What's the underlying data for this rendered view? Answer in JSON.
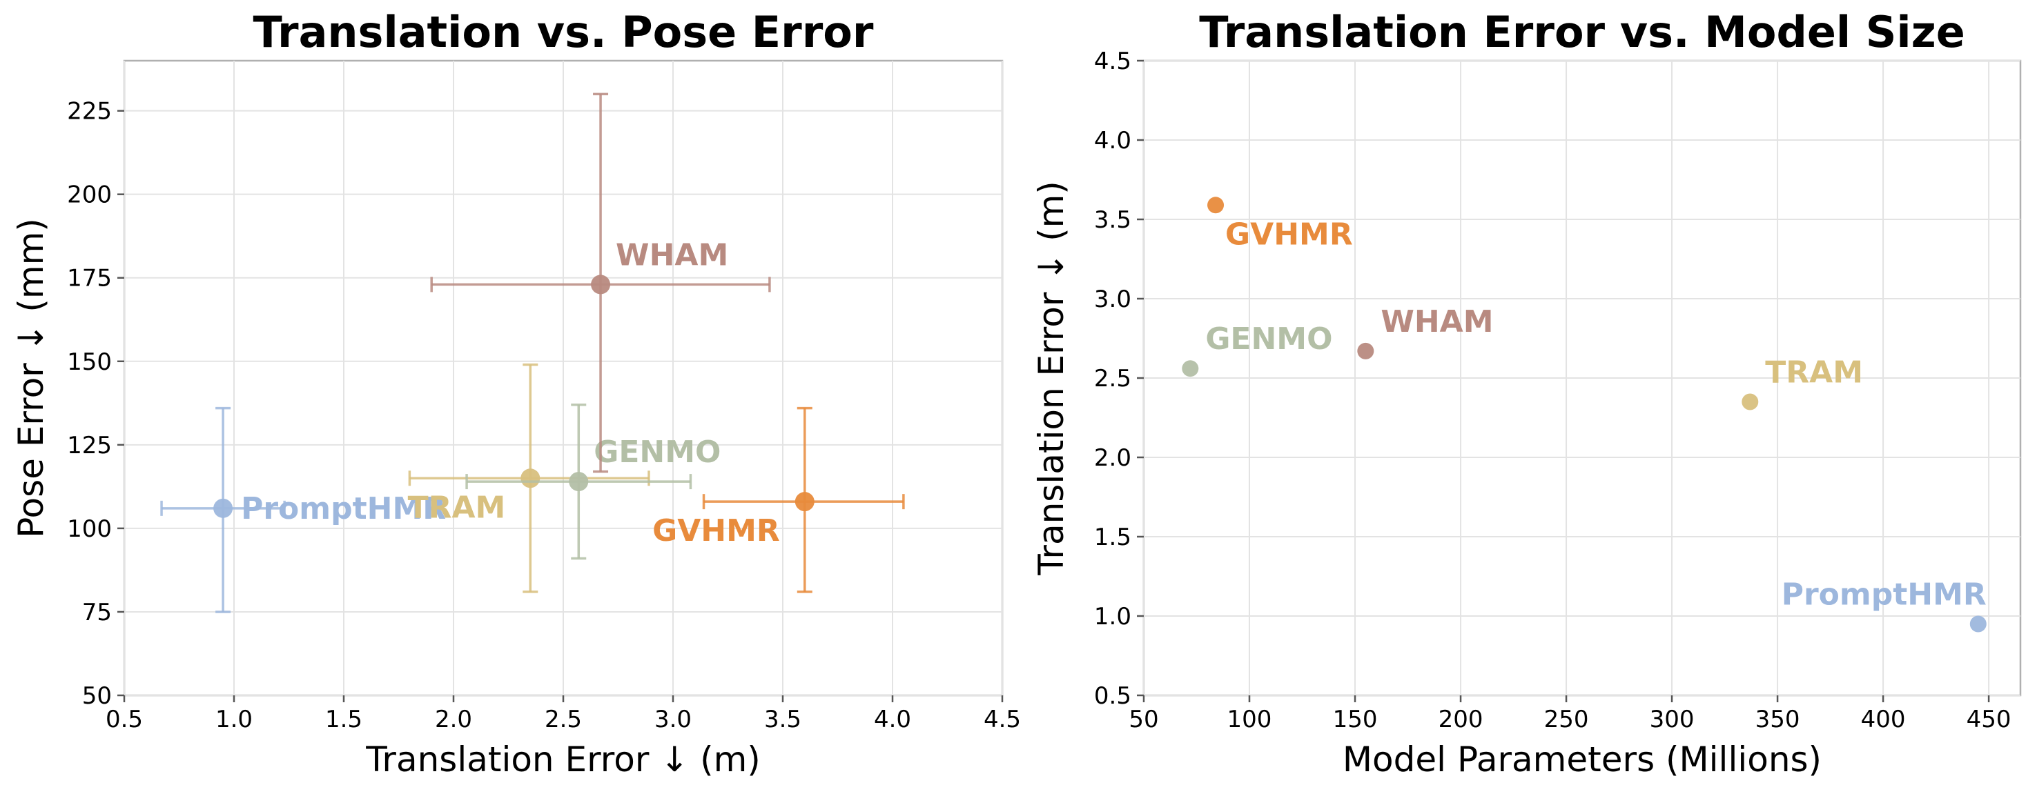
{
  "colors": {
    "PromptHMR": "#9db7dd",
    "TRAM": "#d8c07e",
    "GENMO": "#b3bfa6",
    "WHAM": "#b88a80",
    "GVHMR": "#e88b3c"
  },
  "chart_data": [
    {
      "type": "scatter",
      "title": "Translation vs. Pose Error",
      "xlabel": "Translation Error ↓ (m)",
      "ylabel": "Pose Error ↓ (mm)",
      "xlim": [
        0.5,
        4.5
      ],
      "ylim": [
        50,
        240
      ],
      "xticks": [
        0.5,
        1.0,
        1.5,
        2.0,
        2.5,
        3.0,
        3.5,
        4.0,
        4.5
      ],
      "xtick_labels": [
        "0.5",
        "1.0",
        "1.5",
        "2.0",
        "2.5",
        "3.0",
        "3.5",
        "4.0",
        "4.5"
      ],
      "yticks": [
        50,
        75,
        100,
        125,
        150,
        175,
        200,
        225
      ],
      "ytick_labels": [
        "50",
        "75",
        "100",
        "125",
        "150",
        "175",
        "200",
        "225"
      ],
      "grid": true,
      "error_bars": true,
      "points": [
        {
          "label": "PromptHMR",
          "x": 0.95,
          "y": 106,
          "xerr": [
            0.67,
            1.23
          ],
          "yerr": [
            75,
            136
          ],
          "label_pos": "right"
        },
        {
          "label": "TRAM",
          "x": 2.35,
          "y": 115,
          "xerr": [
            1.8,
            2.89
          ],
          "yerr": [
            81,
            149
          ],
          "label_pos": "lower-left"
        },
        {
          "label": "GENMO",
          "x": 2.57,
          "y": 114,
          "xerr": [
            2.06,
            3.08
          ],
          "yerr": [
            91,
            137
          ],
          "label_pos": "upper-right"
        },
        {
          "label": "WHAM",
          "x": 2.67,
          "y": 173,
          "xerr": [
            1.9,
            3.44
          ],
          "yerr": [
            117,
            230
          ],
          "label_pos": "upper-right"
        },
        {
          "label": "GVHMR",
          "x": 3.6,
          "y": 108,
          "xerr": [
            3.14,
            4.05
          ],
          "yerr": [
            81,
            136
          ],
          "label_pos": "lower-left"
        }
      ]
    },
    {
      "type": "scatter",
      "title": "Translation Error vs. Model Size",
      "xlabel": "Model Parameters (Millions)",
      "ylabel": "Translation Error ↓ (m)",
      "xlim": [
        50,
        465
      ],
      "ylim": [
        0.5,
        4.5
      ],
      "xticks": [
        50,
        100,
        150,
        200,
        250,
        300,
        350,
        400,
        450
      ],
      "xtick_labels": [
        "50",
        "100",
        "150",
        "200",
        "250",
        "300",
        "350",
        "400",
        "450"
      ],
      "yticks": [
        0.5,
        1.0,
        1.5,
        2.0,
        2.5,
        3.0,
        3.5,
        4.0,
        4.5
      ],
      "ytick_labels": [
        "0.5",
        "1.0",
        "1.5",
        "2.0",
        "2.5",
        "3.0",
        "3.5",
        "4.0",
        "4.5"
      ],
      "grid": true,
      "points": [
        {
          "label": "GVHMR",
          "x": 84,
          "y": 3.59,
          "label_pos": "lower-right"
        },
        {
          "label": "GENMO",
          "x": 72,
          "y": 2.56,
          "label_pos": "upper-right"
        },
        {
          "label": "WHAM",
          "x": 155,
          "y": 2.67,
          "label_pos": "upper-right"
        },
        {
          "label": "TRAM",
          "x": 337,
          "y": 2.35,
          "label_pos": "upper-right"
        },
        {
          "label": "PromptHMR",
          "x": 445,
          "y": 0.95,
          "label_pos": "upper-left"
        }
      ]
    }
  ]
}
